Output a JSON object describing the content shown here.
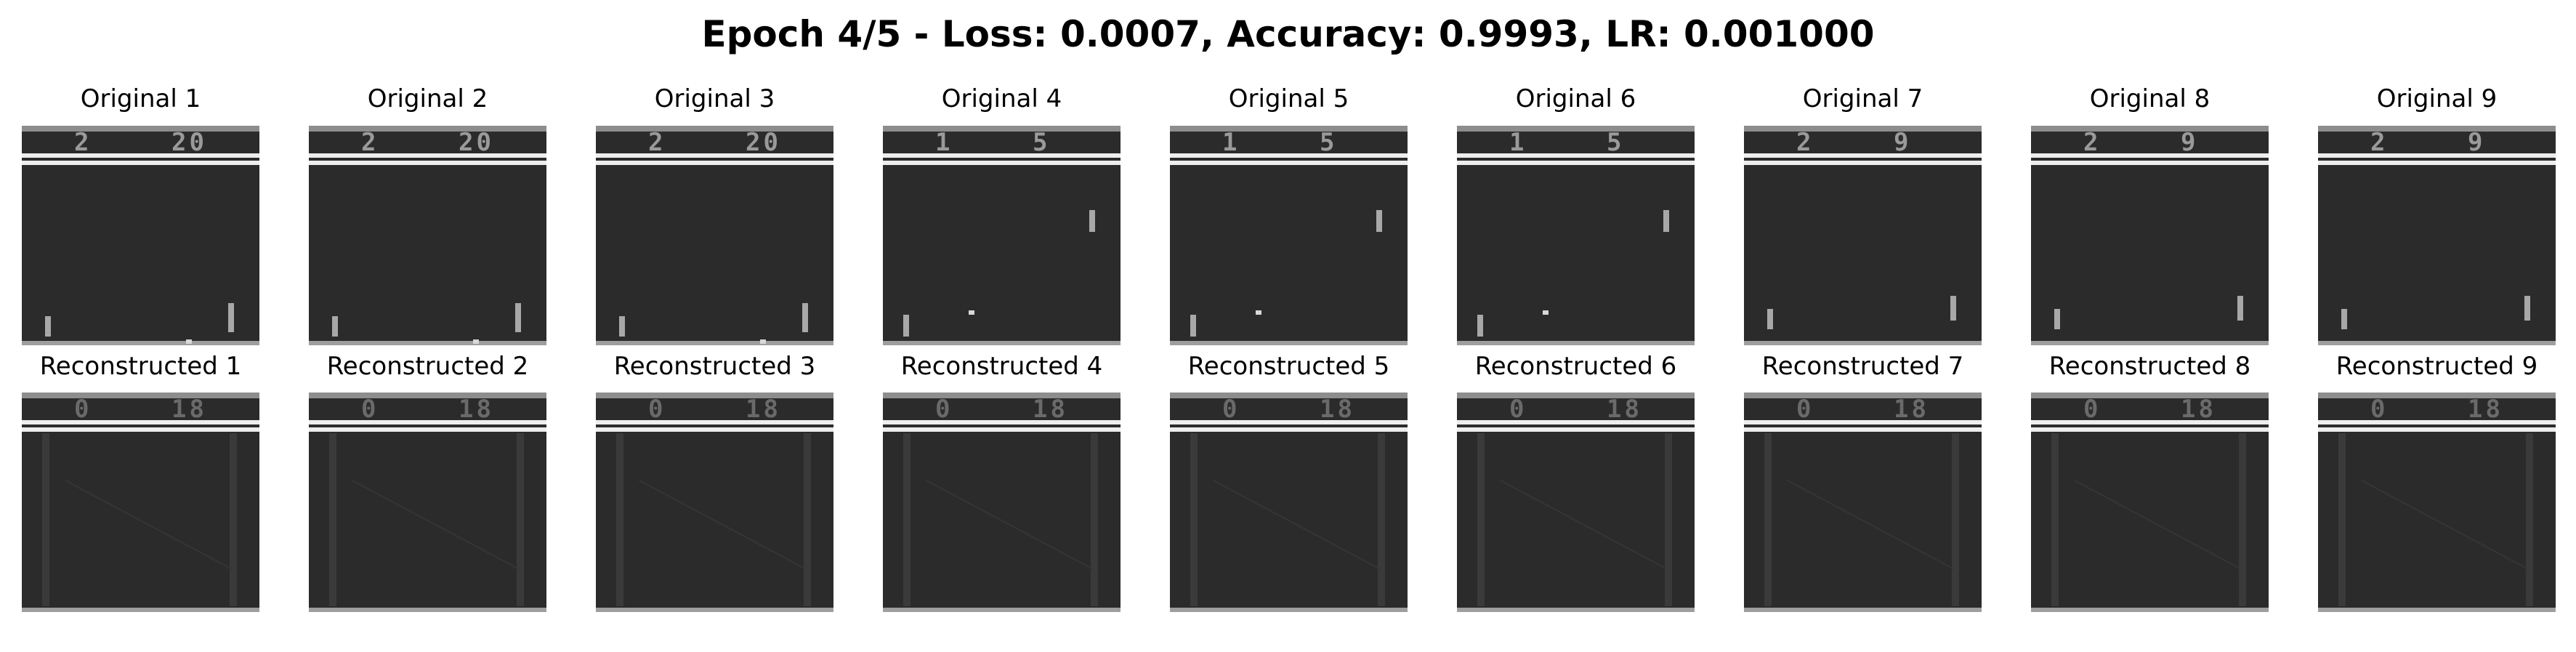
{
  "title": "Epoch 4/5 - Loss: 0.0007, Accuracy: 0.9993, LR: 0.001000",
  "originals": [
    {
      "label": "Original 1",
      "score_left": "2",
      "score_right": "20",
      "ball": "bottom"
    },
    {
      "label": "Original 2",
      "score_left": "2",
      "score_right": "20",
      "ball": "bottom"
    },
    {
      "label": "Original 3",
      "score_left": "2",
      "score_right": "20",
      "ball": "bottom"
    },
    {
      "label": "Original 4",
      "score_left": "1",
      "score_right": "5",
      "ball": "mid"
    },
    {
      "label": "Original 5",
      "score_left": "1",
      "score_right": "5",
      "ball": "mid"
    },
    {
      "label": "Original 6",
      "score_left": "1",
      "score_right": "5",
      "ball": "mid"
    },
    {
      "label": "Original 7",
      "score_left": "2",
      "score_right": "9",
      "ball": "none"
    },
    {
      "label": "Original 8",
      "score_left": "2",
      "score_right": "9",
      "ball": "none"
    },
    {
      "label": "Original 9",
      "score_left": "2",
      "score_right": "9",
      "ball": "none"
    }
  ],
  "reconstructed": [
    {
      "label": "Reconstructed 1",
      "score_left": "0",
      "score_right": "18"
    },
    {
      "label": "Reconstructed 2",
      "score_left": "0",
      "score_right": "18"
    },
    {
      "label": "Reconstructed 3",
      "score_left": "0",
      "score_right": "18"
    },
    {
      "label": "Reconstructed 4",
      "score_left": "0",
      "score_right": "18"
    },
    {
      "label": "Reconstructed 5",
      "score_left": "0",
      "score_right": "18"
    },
    {
      "label": "Reconstructed 6",
      "score_left": "0",
      "score_right": "18"
    },
    {
      "label": "Reconstructed 7",
      "score_left": "0",
      "score_right": "18"
    },
    {
      "label": "Reconstructed 8",
      "score_left": "0",
      "score_right": "18"
    },
    {
      "label": "Reconstructed 9",
      "score_left": "0",
      "score_right": "18"
    }
  ],
  "colors": {
    "background": "#ffffff",
    "frame": "#2b2b2b",
    "bar": "#ededed"
  }
}
